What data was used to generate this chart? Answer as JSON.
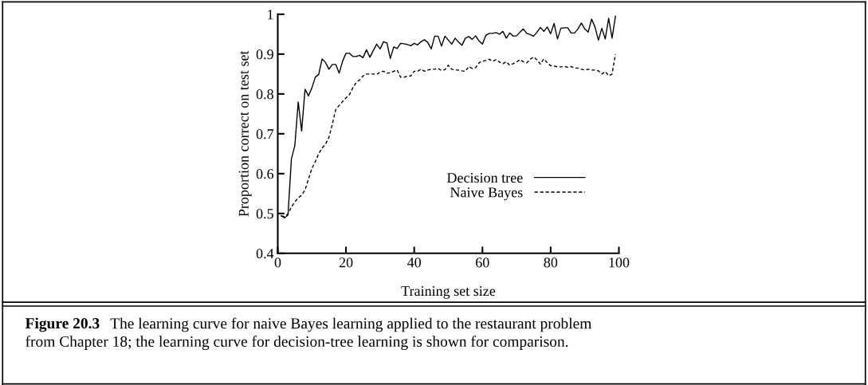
{
  "chart_data": {
    "type": "line",
    "xlabel": "Training set size",
    "ylabel": "Proportion correct on test set",
    "xlim": [
      0,
      100
    ],
    "ylim": [
      0.4,
      1
    ],
    "xticks": [
      0,
      20,
      40,
      60,
      80,
      100
    ],
    "yticks": [
      0.4,
      0.5,
      0.6,
      0.7,
      0.8,
      0.9,
      1
    ],
    "grid": false,
    "legend": "lower right",
    "marker": "none",
    "x": [
      1,
      2,
      3,
      4,
      5,
      6,
      7,
      8,
      9,
      10,
      11,
      12,
      13,
      14,
      15,
      16,
      17,
      18,
      19,
      20,
      21,
      22,
      23,
      24,
      25,
      26,
      27,
      28,
      29,
      30,
      31,
      32,
      33,
      34,
      35,
      36,
      37,
      38,
      39,
      40,
      41,
      42,
      43,
      44,
      45,
      46,
      47,
      48,
      49,
      50,
      51,
      52,
      53,
      54,
      55,
      56,
      57,
      58,
      59,
      60,
      61,
      62,
      63,
      64,
      65,
      66,
      67,
      68,
      69,
      70,
      71,
      72,
      73,
      74,
      75,
      76,
      77,
      78,
      79,
      80,
      81,
      82,
      83,
      84,
      85,
      86,
      87,
      88,
      89,
      90,
      91,
      92,
      93,
      94,
      95,
      96,
      97,
      98,
      99
    ],
    "series": [
      {
        "name": "Decision tree",
        "color": "#000000",
        "line_style": "solid",
        "values": [
          0.494,
          0.489,
          0.496,
          0.637,
          0.67,
          0.78,
          0.707,
          0.812,
          0.795,
          0.815,
          0.842,
          0.849,
          0.888,
          0.879,
          0.862,
          0.874,
          0.874,
          0.852,
          0.882,
          0.902,
          0.902,
          0.894,
          0.894,
          0.897,
          0.891,
          0.911,
          0.892,
          0.909,
          0.925,
          0.913,
          0.931,
          0.928,
          0.889,
          0.918,
          0.914,
          0.927,
          0.926,
          0.924,
          0.921,
          0.927,
          0.923,
          0.931,
          0.936,
          0.929,
          0.913,
          0.945,
          0.945,
          0.92,
          0.945,
          0.935,
          0.925,
          0.94,
          0.93,
          0.922,
          0.94,
          0.944,
          0.937,
          0.946,
          0.933,
          0.925,
          0.947,
          0.952,
          0.952,
          0.954,
          0.95,
          0.957,
          0.94,
          0.953,
          0.945,
          0.946,
          0.955,
          0.963,
          0.952,
          0.949,
          0.945,
          0.955,
          0.967,
          0.957,
          0.968,
          0.951,
          0.977,
          0.938,
          0.965,
          0.966,
          0.966,
          0.953,
          0.953,
          0.963,
          0.978,
          0.963,
          0.955,
          0.988,
          0.968,
          0.935,
          0.965,
          0.938,
          0.99,
          0.94,
          0.995
        ]
      },
      {
        "name": "Naive Bayes",
        "color": "#000000",
        "line_style": "dashed",
        "values": [
          0.494,
          0.492,
          0.499,
          0.516,
          0.529,
          0.539,
          0.546,
          0.559,
          0.586,
          0.613,
          0.63,
          0.65,
          0.664,
          0.674,
          0.691,
          0.724,
          0.761,
          0.771,
          0.781,
          0.79,
          0.798,
          0.815,
          0.829,
          0.835,
          0.845,
          0.85,
          0.85,
          0.85,
          0.849,
          0.855,
          0.857,
          0.852,
          0.853,
          0.857,
          0.86,
          0.842,
          0.842,
          0.845,
          0.845,
          0.857,
          0.857,
          0.862,
          0.857,
          0.86,
          0.862,
          0.862,
          0.864,
          0.859,
          0.861,
          0.872,
          0.862,
          0.86,
          0.86,
          0.858,
          0.857,
          0.869,
          0.864,
          0.866,
          0.878,
          0.882,
          0.884,
          0.887,
          0.882,
          0.886,
          0.88,
          0.876,
          0.881,
          0.872,
          0.876,
          0.88,
          0.886,
          0.881,
          0.878,
          0.887,
          0.893,
          0.885,
          0.875,
          0.888,
          0.878,
          0.871,
          0.87,
          0.868,
          0.868,
          0.869,
          0.867,
          0.869,
          0.865,
          0.865,
          0.862,
          0.86,
          0.862,
          0.86,
          0.86,
          0.858,
          0.85,
          0.856,
          0.846,
          0.85,
          0.9
        ]
      }
    ],
    "annotations": [
      "Figure 20.3",
      "The learning curve for naive Bayes learning applied to the restaurant problem\nfrom Chapter 18; the learning curve for decision-tree learning is shown for comparison."
    ]
  }
}
